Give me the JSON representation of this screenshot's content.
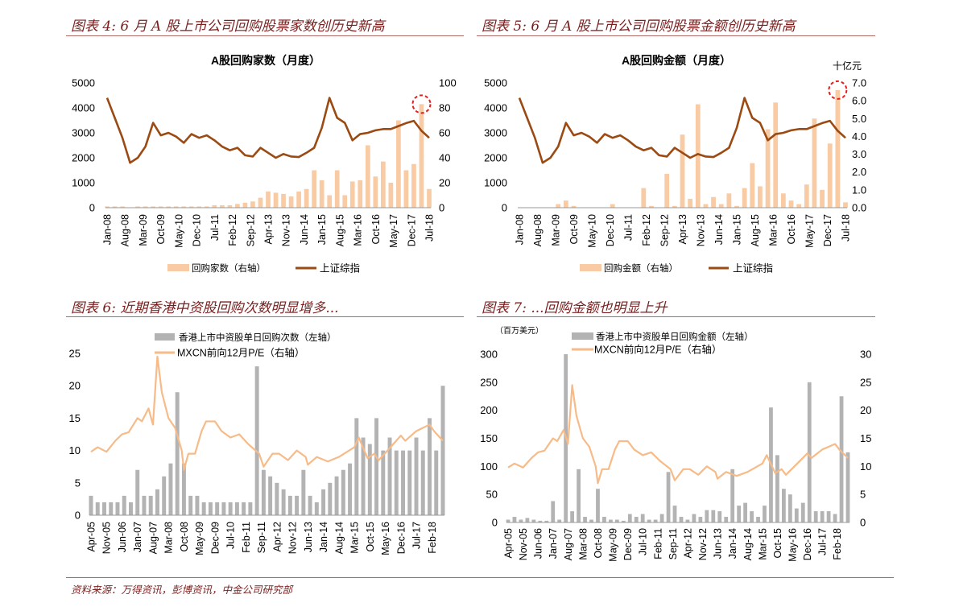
{
  "sections": {
    "fig4_title": "图表 4: 6 月 A 股上市公司回购股票家数创历史新高",
    "fig5_title": "图表 5: 6 月 A 股上市公司回购股票金额创历史新高",
    "fig6_title": "图表 6:  近期香港中资股回购次数明显增多...",
    "fig7_title": "图表 7: ...回购金额也明显上升",
    "source": "资料来源：万得资讯，彭博资讯，中金公司研究部"
  },
  "colors": {
    "title": "#7a1e1e",
    "index_line": "#9a4a12",
    "bars_peach": "#f8cba4",
    "bars_gray": "#b3b3b3",
    "pe_line": "#f6bb88",
    "highlight": "#e02020"
  },
  "chart_data": [
    {
      "id": "c4",
      "type": "bar+line",
      "title": "A股回购家数（月度）",
      "x": [
        "2008-01",
        "2008-04",
        "2008-07",
        "2008-10",
        "2009-01",
        "2009-04",
        "2009-07",
        "2009-10",
        "2010-01",
        "2010-04",
        "2010-07",
        "2010-10",
        "2011-01",
        "2011-04",
        "2011-07",
        "2011-10",
        "2012-01",
        "2012-04",
        "2012-07",
        "2012-10",
        "2013-01",
        "2013-04",
        "2013-07",
        "2013-10",
        "2014-01",
        "2014-04",
        "2014-07",
        "2014-10",
        "2015-01",
        "2015-04",
        "2015-07",
        "2015-10",
        "2016-01",
        "2016-04",
        "2016-07",
        "2016-10",
        "2017-01",
        "2017-04",
        "2017-07",
        "2017-10",
        "2018-01",
        "2018-04",
        "2018-07"
      ],
      "x_tick_labels": [
        "Jan-08",
        "Aug-08",
        "Mar-09",
        "Oct-09",
        "May-10",
        "Dec-10",
        "Jul-11",
        "Feb-12",
        "Sep-12",
        "Apr-13",
        "Nov-13",
        "Jun-14",
        "Jan-15",
        "Aug-15",
        "Mar-16",
        "Oct-16",
        "May-17",
        "Dec-17",
        "Jul-18"
      ],
      "y_left": {
        "range": [
          0,
          5000
        ],
        "ticks": [
          "0",
          "1000",
          "2000",
          "3000",
          "4000",
          "5000"
        ]
      },
      "y_right": {
        "range": [
          0,
          100
        ],
        "ticks": [
          "0",
          "20",
          "40",
          "60",
          "80",
          "100"
        ]
      },
      "bars": {
        "name": "回购家数（右轴）",
        "axis": "right",
        "values": [
          1,
          1,
          1,
          0,
          1,
          1,
          1,
          1,
          1,
          1,
          1,
          1,
          1,
          1,
          2,
          2,
          2,
          3,
          4,
          5,
          8,
          13,
          12,
          11,
          9,
          13,
          15,
          30,
          22,
          10,
          30,
          10,
          21,
          22,
          50,
          25,
          37,
          20,
          70,
          30,
          35,
          83,
          15
        ]
      },
      "line": {
        "name": "上证综指",
        "axis": "left",
        "values": [
          4400,
          3600,
          2800,
          1800,
          2000,
          2450,
          3400,
          2900,
          3000,
          2850,
          2600,
          2950,
          2800,
          2900,
          2700,
          2450,
          2300,
          2400,
          2100,
          2050,
          2400,
          2200,
          2000,
          2150,
          2050,
          2030,
          2200,
          2400,
          3200,
          4400,
          3600,
          3400,
          2700,
          2950,
          3000,
          3100,
          3150,
          3150,
          3270,
          3390,
          3480,
          3080,
          2800
        ]
      },
      "highlight": "max bar"
    },
    {
      "id": "c5",
      "type": "bar+line",
      "title": "A股回购金额（月度）",
      "unit_right": "十亿元",
      "x": [
        "2008-01",
        "2008-04",
        "2008-07",
        "2008-10",
        "2009-01",
        "2009-04",
        "2009-07",
        "2009-10",
        "2010-01",
        "2010-04",
        "2010-07",
        "2010-10",
        "2011-01",
        "2011-04",
        "2011-07",
        "2011-10",
        "2012-01",
        "2012-04",
        "2012-07",
        "2012-10",
        "2013-01",
        "2013-04",
        "2013-07",
        "2013-10",
        "2014-01",
        "2014-04",
        "2014-07",
        "2014-10",
        "2015-01",
        "2015-04",
        "2015-07",
        "2015-10",
        "2016-01",
        "2016-04",
        "2016-07",
        "2016-10",
        "2017-01",
        "2017-04",
        "2017-07",
        "2017-10",
        "2018-01",
        "2018-04",
        "2018-07"
      ],
      "x_tick_labels": [
        "Jan-08",
        "Aug-08",
        "Mar-09",
        "Oct-09",
        "May-10",
        "Dec-10",
        "Jul-11",
        "Feb-12",
        "Sep-12",
        "Apr-13",
        "Nov-13",
        "Jun-14",
        "Jan-15",
        "Aug-15",
        "Mar-16",
        "Oct-16",
        "May-17",
        "Dec-17",
        "Jul-18"
      ],
      "y_left": {
        "range": [
          0,
          5000
        ],
        "ticks": [
          "0",
          "1000",
          "2000",
          "3000",
          "4000",
          "5000"
        ]
      },
      "y_right": {
        "range": [
          0,
          7
        ],
        "ticks": [
          "0.0",
          "1.0",
          "2.0",
          "3.0",
          "4.0",
          "5.0",
          "6.0",
          "7.0"
        ]
      },
      "bars": {
        "name": "回购金额（右轴）",
        "axis": "right",
        "values": [
          0,
          0,
          0,
          0,
          0,
          0.2,
          0.4,
          0.1,
          0,
          0,
          0,
          0,
          0.2,
          0,
          0,
          0,
          1.1,
          0.1,
          0,
          1.9,
          0.1,
          4.1,
          0.5,
          5.8,
          0.2,
          0.6,
          0.2,
          0.8,
          0.1,
          1.1,
          2.5,
          1.2,
          4.4,
          5.9,
          0.8,
          0.4,
          0.2,
          1.3,
          5.0,
          1.0,
          3.6,
          6.6,
          0.3
        ]
      },
      "line": {
        "name": "上证综指",
        "axis": "left",
        "values": [
          4400,
          3600,
          2800,
          1800,
          2000,
          2450,
          3400,
          2900,
          3000,
          2850,
          2600,
          2950,
          2800,
          2900,
          2700,
          2450,
          2300,
          2400,
          2100,
          2050,
          2400,
          2200,
          2000,
          2150,
          2050,
          2030,
          2200,
          2400,
          3200,
          4400,
          3600,
          3400,
          2700,
          2950,
          3000,
          3100,
          3150,
          3150,
          3270,
          3390,
          3480,
          3080,
          2800
        ]
      },
      "highlight": "max bar"
    },
    {
      "id": "c6",
      "type": "bar+line",
      "x": [
        "2005-04",
        "2005-07",
        "2005-10",
        "2006-01",
        "2006-04",
        "2006-07",
        "2006-10",
        "2007-01",
        "2007-04",
        "2007-07",
        "2007-10",
        "2008-01",
        "2008-04",
        "2008-07",
        "2008-10",
        "2009-01",
        "2009-04",
        "2009-07",
        "2009-10",
        "2010-01",
        "2010-04",
        "2010-07",
        "2010-10",
        "2011-01",
        "2011-04",
        "2011-07",
        "2011-10",
        "2012-01",
        "2012-04",
        "2012-07",
        "2012-10",
        "2013-01",
        "2013-04",
        "2013-07",
        "2013-10",
        "2014-01",
        "2014-04",
        "2014-07",
        "2014-10",
        "2015-01",
        "2015-04",
        "2015-07",
        "2015-10",
        "2016-01",
        "2016-04",
        "2016-07",
        "2016-10",
        "2017-01",
        "2017-04",
        "2017-07",
        "2017-10",
        "2018-01",
        "2018-04",
        "2018-07"
      ],
      "x_tick_labels": [
        "Apr-05",
        "Nov-05",
        "Jun-06",
        "Jan-07",
        "Aug-07",
        "Mar-08",
        "Oct-08",
        "May-09",
        "Dec-09",
        "Jul-10",
        "Feb-11",
        "Sep-11",
        "Apr-12",
        "Nov-12",
        "Jun-13",
        "Jan-14",
        "Aug-14",
        "Mar-15",
        "Oct-15",
        "May-16",
        "Dec-16",
        "Jul-17",
        "Feb-18"
      ],
      "y_left": {
        "range": [
          0,
          25
        ],
        "ticks": [
          "0",
          "5",
          "10",
          "15",
          "20",
          "25"
        ]
      },
      "bars": {
        "name": "香港上市中资股单日回购次数（左轴）",
        "axis": "left",
        "values": [
          3,
          2,
          2,
          2,
          2,
          3,
          2,
          7,
          3,
          3,
          4,
          6,
          8,
          19,
          8,
          3,
          3,
          2,
          2,
          2,
          2,
          2,
          2,
          2,
          2,
          23,
          7,
          6,
          5,
          4,
          3,
          3,
          7,
          3,
          2,
          4,
          5,
          6,
          7,
          8,
          15,
          12,
          11,
          15,
          10,
          12,
          10,
          10,
          10,
          12,
          10,
          15,
          10,
          20
        ]
      },
      "line": {
        "name": "MXCN前向12月P/E（右轴）",
        "axis": "left",
        "points": [
          [
            "2005-04",
            9.8
          ],
          [
            "2005-07",
            10.5
          ],
          [
            "2005-11",
            9.8
          ],
          [
            "2006-03",
            11.5
          ],
          [
            "2006-06",
            12.5
          ],
          [
            "2006-09",
            12.8
          ],
          [
            "2007-01",
            15
          ],
          [
            "2007-03",
            14.5
          ],
          [
            "2007-06",
            16.5
          ],
          [
            "2007-08",
            14
          ],
          [
            "2007-10",
            24.5
          ],
          [
            "2007-12",
            19
          ],
          [
            "2008-03",
            15
          ],
          [
            "2008-06",
            13.5
          ],
          [
            "2008-09",
            10
          ],
          [
            "2008-10",
            7
          ],
          [
            "2008-12",
            9.5
          ],
          [
            "2009-03",
            9.5
          ],
          [
            "2009-06",
            13
          ],
          [
            "2009-08",
            14.5
          ],
          [
            "2009-12",
            14.5
          ],
          [
            "2010-03",
            13
          ],
          [
            "2010-07",
            12
          ],
          [
            "2010-11",
            12.5
          ],
          [
            "2011-03",
            11
          ],
          [
            "2011-08",
            9.5
          ],
          [
            "2011-10",
            7.5
          ],
          [
            "2012-02",
            9.5
          ],
          [
            "2012-05",
            9.5
          ],
          [
            "2012-09",
            8.5
          ],
          [
            "2013-01",
            10
          ],
          [
            "2013-05",
            9
          ],
          [
            "2013-06",
            7.8
          ],
          [
            "2013-10",
            9
          ],
          [
            "2014-03",
            8.3
          ],
          [
            "2014-08",
            9
          ],
          [
            "2015-03",
            10.5
          ],
          [
            "2015-05",
            12
          ],
          [
            "2015-09",
            8.8
          ],
          [
            "2015-12",
            9.5
          ],
          [
            "2016-02",
            8.5
          ],
          [
            "2016-06",
            10
          ],
          [
            "2016-12",
            12.3
          ],
          [
            "2017-02",
            11.5
          ],
          [
            "2017-07",
            13
          ],
          [
            "2018-01",
            14
          ],
          [
            "2018-03",
            13
          ],
          [
            "2018-07",
            11.5
          ]
        ]
      }
    },
    {
      "id": "c7",
      "type": "bar+line",
      "unit_left": "（百万美元）",
      "x": [
        "2005-04",
        "2005-07",
        "2005-10",
        "2006-01",
        "2006-04",
        "2006-07",
        "2006-10",
        "2007-01",
        "2007-04",
        "2007-07",
        "2007-10",
        "2008-01",
        "2008-04",
        "2008-07",
        "2008-10",
        "2009-01",
        "2009-04",
        "2009-07",
        "2009-10",
        "2010-01",
        "2010-04",
        "2010-07",
        "2010-10",
        "2011-01",
        "2011-04",
        "2011-07",
        "2011-10",
        "2012-01",
        "2012-04",
        "2012-07",
        "2012-10",
        "2013-01",
        "2013-04",
        "2013-07",
        "2013-10",
        "2014-01",
        "2014-04",
        "2014-07",
        "2014-10",
        "2015-01",
        "2015-04",
        "2015-07",
        "2015-10",
        "2016-01",
        "2016-04",
        "2016-07",
        "2016-10",
        "2017-01",
        "2017-04",
        "2017-07",
        "2017-10",
        "2018-01",
        "2018-04",
        "2018-07"
      ],
      "x_tick_labels": [
        "Apr-05",
        "Nov-05",
        "Jun-06",
        "Jan-07",
        "Aug-07",
        "Mar-08",
        "Oct-08",
        "May-09",
        "Dec-09",
        "Jul-10",
        "Feb-11",
        "Sep-11",
        "Apr-12",
        "Nov-12",
        "Jun-13",
        "Jan-14",
        "Aug-14",
        "Mar-15",
        "Oct-15",
        "May-16",
        "Dec-16",
        "Jul-17",
        "Feb-18"
      ],
      "y_left": {
        "range": [
          0,
          300
        ],
        "ticks": [
          "0",
          "50",
          "100",
          "150",
          "200",
          "250",
          "300"
        ]
      },
      "y_right": {
        "range": [
          0,
          30
        ],
        "ticks": [
          "0",
          "5",
          "10",
          "15",
          "20",
          "25",
          "30"
        ]
      },
      "bars": {
        "name": "香港上市中资股单日回购金额（左轴）",
        "axis": "left",
        "values": [
          5,
          10,
          5,
          8,
          5,
          3,
          3,
          38,
          5,
          300,
          20,
          95,
          10,
          5,
          60,
          10,
          5,
          5,
          3,
          15,
          10,
          15,
          5,
          5,
          15,
          90,
          30,
          10,
          5,
          15,
          10,
          22,
          22,
          20,
          10,
          95,
          30,
          35,
          20,
          10,
          30,
          205,
          120,
          60,
          50,
          25,
          35,
          250,
          20,
          20,
          20,
          15,
          225,
          125
        ]
      },
      "line": {
        "name": "MXCN前向12月P/E（右轴）",
        "axis": "right",
        "points": [
          [
            "2005-04",
            9.8
          ],
          [
            "2005-07",
            10.5
          ],
          [
            "2005-11",
            9.8
          ],
          [
            "2006-03",
            11.5
          ],
          [
            "2006-06",
            12.5
          ],
          [
            "2006-09",
            12.8
          ],
          [
            "2007-01",
            15
          ],
          [
            "2007-03",
            14.5
          ],
          [
            "2007-06",
            16.5
          ],
          [
            "2007-08",
            14
          ],
          [
            "2007-10",
            24.5
          ],
          [
            "2007-12",
            19
          ],
          [
            "2008-03",
            15
          ],
          [
            "2008-06",
            13.5
          ],
          [
            "2008-09",
            10
          ],
          [
            "2008-10",
            7
          ],
          [
            "2008-12",
            9.5
          ],
          [
            "2009-03",
            9.5
          ],
          [
            "2009-06",
            13
          ],
          [
            "2009-08",
            14.5
          ],
          [
            "2009-12",
            14.5
          ],
          [
            "2010-03",
            13
          ],
          [
            "2010-07",
            12
          ],
          [
            "2010-11",
            12.5
          ],
          [
            "2011-03",
            11
          ],
          [
            "2011-08",
            9.5
          ],
          [
            "2011-10",
            7.5
          ],
          [
            "2012-02",
            9.5
          ],
          [
            "2012-05",
            9.5
          ],
          [
            "2012-09",
            8.5
          ],
          [
            "2013-01",
            10
          ],
          [
            "2013-05",
            9
          ],
          [
            "2013-06",
            7.8
          ],
          [
            "2013-10",
            9
          ],
          [
            "2014-03",
            8.3
          ],
          [
            "2014-08",
            9
          ],
          [
            "2015-03",
            10.5
          ],
          [
            "2015-05",
            12
          ],
          [
            "2015-09",
            8.8
          ],
          [
            "2015-12",
            9.5
          ],
          [
            "2016-02",
            8.5
          ],
          [
            "2016-06",
            10
          ],
          [
            "2016-12",
            12.3
          ],
          [
            "2017-02",
            11.5
          ],
          [
            "2017-07",
            13
          ],
          [
            "2018-01",
            14
          ],
          [
            "2018-03",
            13
          ],
          [
            "2018-07",
            11.5
          ]
        ]
      }
    }
  ]
}
